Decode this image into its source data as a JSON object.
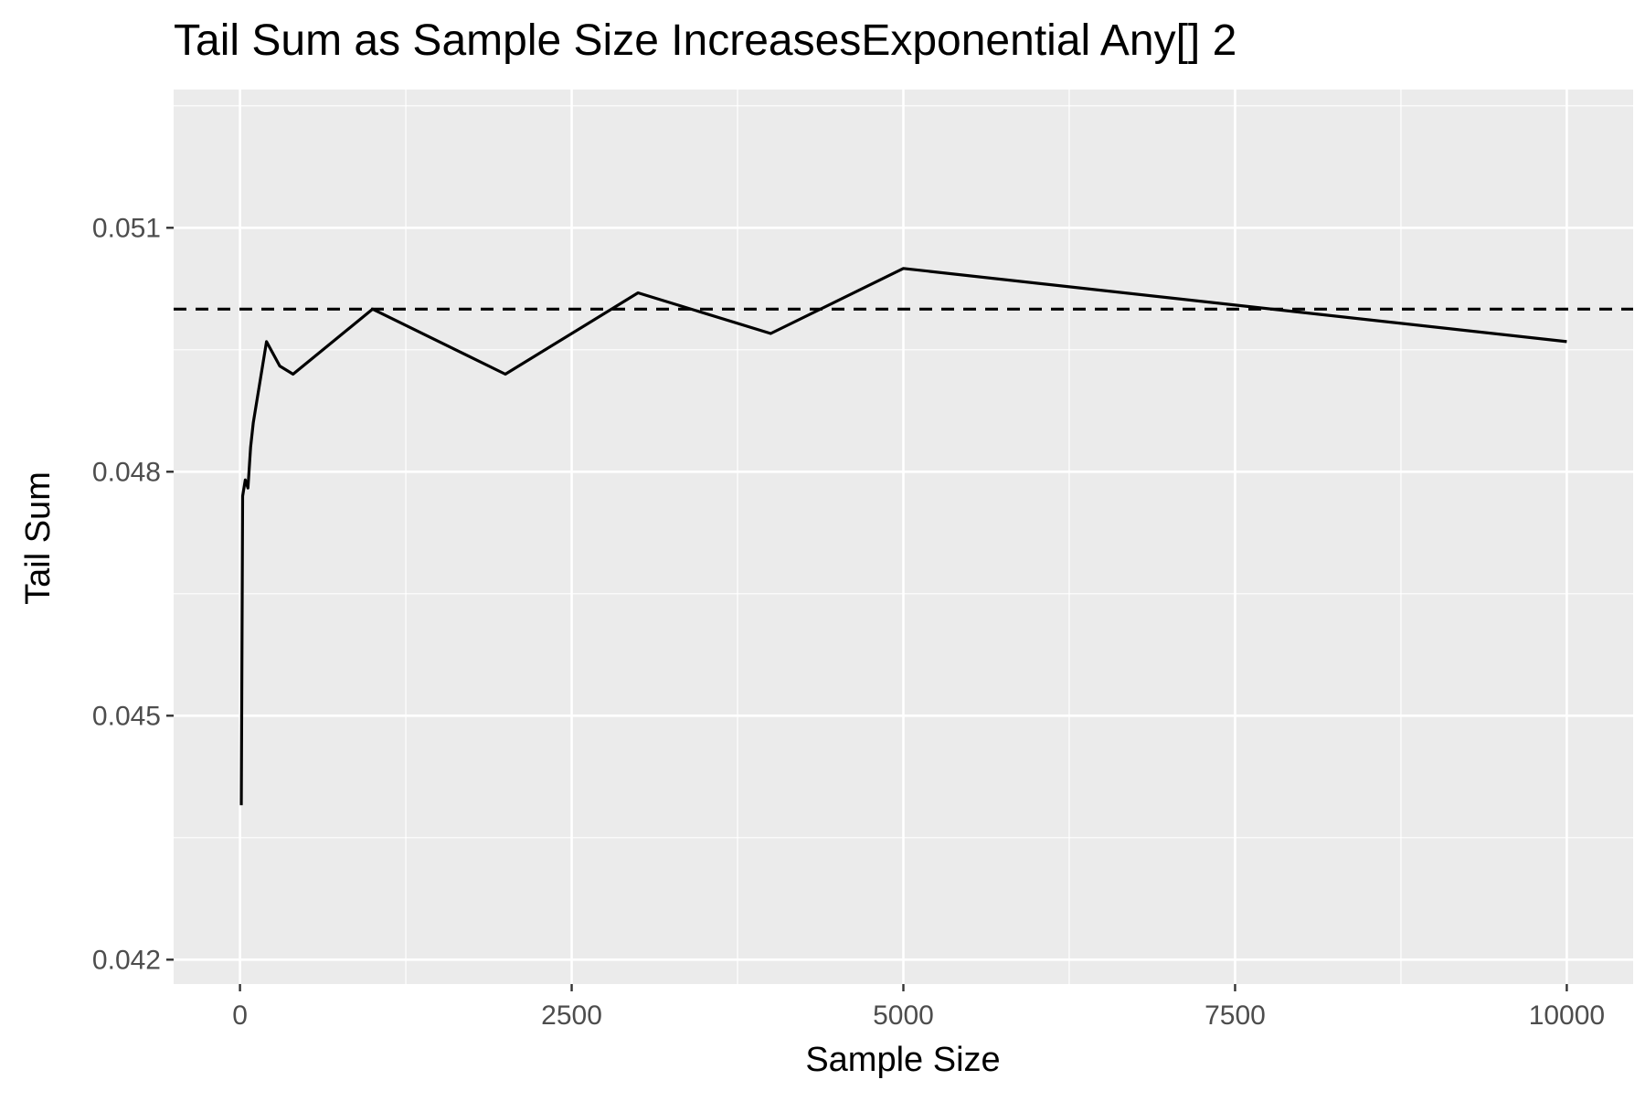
{
  "chart_data": {
    "type": "line",
    "title": "Tail Sum as Sample Size IncreasesExponential Any[] 2",
    "xlabel": "Sample Size",
    "ylabel": "Tail Sum",
    "xlim": [
      -500,
      10500
    ],
    "ylim": [
      0.0417,
      0.0527
    ],
    "x_ticks": [
      0,
      2500,
      5000,
      7500,
      10000
    ],
    "y_ticks": [
      0.042,
      0.045,
      0.048,
      0.051
    ],
    "x_tick_labels": [
      "0",
      "2500",
      "5000",
      "7500",
      "10000"
    ],
    "y_tick_labels": [
      "0.042",
      "0.045",
      "0.048",
      "0.051"
    ],
    "grid": true,
    "panel_background": "#EBEBEB",
    "series": [
      {
        "x": [
          10,
          20,
          40,
          60,
          80,
          100,
          200,
          300,
          400,
          1000,
          2000,
          3000,
          4000,
          5000,
          10000
        ],
        "y": [
          0.0439,
          0.0477,
          0.0479,
          0.0478,
          0.0483,
          0.0486,
          0.0496,
          0.0493,
          0.0492,
          0.05,
          0.0492,
          0.0502,
          0.0497,
          0.0505,
          0.0496
        ],
        "color": "#000000",
        "line_style": "solid"
      }
    ],
    "reference_line": {
      "orientation": "horizontal",
      "y": 0.05,
      "color": "#000000",
      "line_style": "dashed"
    }
  }
}
